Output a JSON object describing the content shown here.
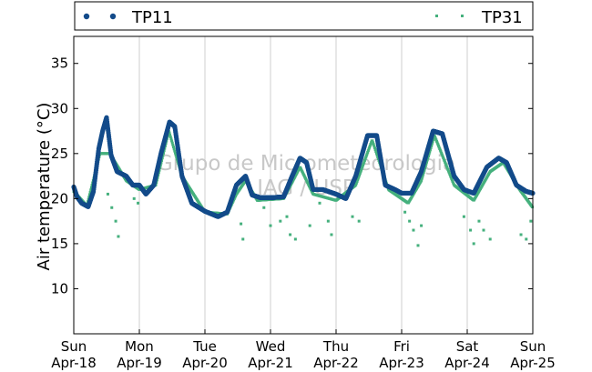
{
  "chart_data": {
    "type": "scatter",
    "title": "",
    "ylabel": "Air temperature (°C)",
    "xlabel": "",
    "xlim": [
      "2021-04-18",
      "2021-04-25"
    ],
    "ylim": [
      5,
      38
    ],
    "yticks": [
      10,
      15,
      20,
      25,
      30,
      35
    ],
    "xticks": [
      {
        "day": "Sun",
        "date": "Apr-18"
      },
      {
        "day": "Mon",
        "date": "Apr-19"
      },
      {
        "day": "Tue",
        "date": "Apr-20"
      },
      {
        "day": "Wed",
        "date": "Apr-21"
      },
      {
        "day": "Thu",
        "date": "Apr-22"
      },
      {
        "day": "Fri",
        "date": "Apr-23"
      },
      {
        "day": "Sat",
        "date": "Apr-24"
      },
      {
        "day": "Sun",
        "date": "Apr-25"
      }
    ],
    "grid": "vertical",
    "legend": "top",
    "watermark": [
      "Grupo de Micrometeorologia",
      "IAG / USP"
    ],
    "series": [
      {
        "name": "TP11",
        "color": "#134b8a",
        "marker": "circle",
        "keypoints": [
          [
            0.0,
            21.3
          ],
          [
            0.05,
            20.2
          ],
          [
            0.12,
            19.5
          ],
          [
            0.22,
            19.1
          ],
          [
            0.3,
            20.8
          ],
          [
            0.38,
            25.5
          ],
          [
            0.44,
            27.5
          ],
          [
            0.5,
            29.0
          ],
          [
            0.57,
            24.8
          ],
          [
            0.66,
            23.0
          ],
          [
            0.8,
            22.5
          ],
          [
            0.9,
            21.5
          ],
          [
            1.0,
            21.5
          ],
          [
            1.1,
            20.5
          ],
          [
            1.22,
            21.5
          ],
          [
            1.33,
            25.0
          ],
          [
            1.46,
            28.5
          ],
          [
            1.54,
            28.0
          ],
          [
            1.65,
            22.5
          ],
          [
            1.8,
            19.5
          ],
          [
            2.0,
            18.6
          ],
          [
            2.2,
            18.0
          ],
          [
            2.34,
            18.5
          ],
          [
            2.48,
            21.5
          ],
          [
            2.62,
            22.5
          ],
          [
            2.72,
            20.4
          ],
          [
            2.85,
            20.1
          ],
          [
            3.0,
            20.1
          ],
          [
            3.2,
            20.2
          ],
          [
            3.33,
            22.5
          ],
          [
            3.45,
            24.5
          ],
          [
            3.55,
            24.0
          ],
          [
            3.65,
            21.0
          ],
          [
            3.8,
            21.0
          ],
          [
            4.0,
            20.5
          ],
          [
            4.15,
            20.0
          ],
          [
            4.3,
            22.5
          ],
          [
            4.48,
            27.0
          ],
          [
            4.62,
            27.0
          ],
          [
            4.75,
            21.5
          ],
          [
            4.9,
            21.0
          ],
          [
            5.0,
            20.6
          ],
          [
            5.15,
            20.6
          ],
          [
            5.3,
            23.0
          ],
          [
            5.48,
            27.5
          ],
          [
            5.62,
            27.2
          ],
          [
            5.8,
            22.5
          ],
          [
            5.95,
            21.0
          ],
          [
            6.1,
            20.6
          ],
          [
            6.3,
            23.5
          ],
          [
            6.48,
            24.5
          ],
          [
            6.6,
            24.0
          ],
          [
            6.75,
            21.5
          ],
          [
            6.9,
            20.8
          ],
          [
            7.0,
            20.6
          ]
        ]
      },
      {
        "name": "TP31",
        "color": "#45b07d",
        "marker": "square",
        "keypoints": [
          [
            0.0,
            20.8
          ],
          [
            0.2,
            19.2
          ],
          [
            0.4,
            25.0
          ],
          [
            0.55,
            25.0
          ],
          [
            0.8,
            22.0
          ],
          [
            1.0,
            21.0
          ],
          [
            1.25,
            21.5
          ],
          [
            1.45,
            27.5
          ],
          [
            1.65,
            22.5
          ],
          [
            2.0,
            18.5
          ],
          [
            2.34,
            18.3
          ],
          [
            2.48,
            20.5
          ],
          [
            2.62,
            22.0
          ],
          [
            2.8,
            19.8
          ],
          [
            3.2,
            20.0
          ],
          [
            3.45,
            23.5
          ],
          [
            3.65,
            20.5
          ],
          [
            4.0,
            19.8
          ],
          [
            4.3,
            21.5
          ],
          [
            4.55,
            26.5
          ],
          [
            4.8,
            21.0
          ],
          [
            5.1,
            19.5
          ],
          [
            5.3,
            22.0
          ],
          [
            5.5,
            27.0
          ],
          [
            5.8,
            21.5
          ],
          [
            6.1,
            19.8
          ],
          [
            6.35,
            23.0
          ],
          [
            6.55,
            24.0
          ],
          [
            6.8,
            21.0
          ],
          [
            7.0,
            19.0
          ]
        ],
        "outliers": [
          [
            0.52,
            20.5
          ],
          [
            0.58,
            19.0
          ],
          [
            0.64,
            17.5
          ],
          [
            0.68,
            15.8
          ],
          [
            0.92,
            20.0
          ],
          [
            0.98,
            19.5
          ],
          [
            2.55,
            17.2
          ],
          [
            2.58,
            15.5
          ],
          [
            2.9,
            19.0
          ],
          [
            3.0,
            17.0
          ],
          [
            3.15,
            17.5
          ],
          [
            3.25,
            18.0
          ],
          [
            3.3,
            16.0
          ],
          [
            3.38,
            15.5
          ],
          [
            3.6,
            17.0
          ],
          [
            3.75,
            19.5
          ],
          [
            3.88,
            17.5
          ],
          [
            3.93,
            16.0
          ],
          [
            4.25,
            18.0
          ],
          [
            4.35,
            17.5
          ],
          [
            5.05,
            18.5
          ],
          [
            5.12,
            17.5
          ],
          [
            5.18,
            16.5
          ],
          [
            5.25,
            14.8
          ],
          [
            5.3,
            17.0
          ],
          [
            5.95,
            18.0
          ],
          [
            6.05,
            16.5
          ],
          [
            6.1,
            15.0
          ],
          [
            6.18,
            17.5
          ],
          [
            6.25,
            16.5
          ],
          [
            6.35,
            15.5
          ],
          [
            6.82,
            16.0
          ],
          [
            6.9,
            15.5
          ],
          [
            6.97,
            17.5
          ]
        ]
      }
    ]
  }
}
